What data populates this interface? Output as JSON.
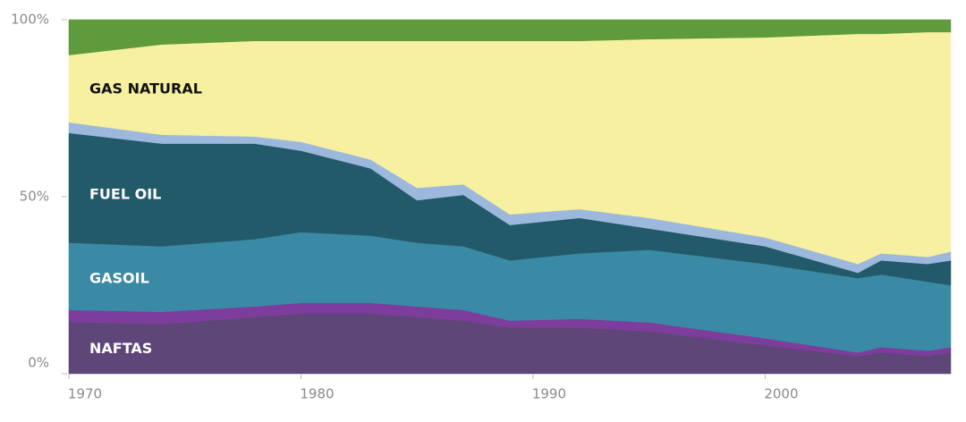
{
  "chart_data": {
    "type": "area",
    "stacked": true,
    "x": [
      1970,
      1974,
      1978,
      1980,
      1983,
      1985,
      1987,
      1989,
      1992,
      1995,
      2000,
      2004,
      2005,
      2007,
      2008
    ],
    "xlim": [
      1970,
      2008
    ],
    "xticks": [
      1970,
      1980,
      1990,
      2000
    ],
    "ylim": [
      0,
      100
    ],
    "yticks": [
      {
        "value": 0,
        "label": "0%"
      },
      {
        "value": 50,
        "label": "50%"
      },
      {
        "value": 100,
        "label": "100%"
      }
    ],
    "series": [
      {
        "name": "NAFTAS",
        "color": "#5e4678",
        "values": [
          14.6,
          14,
          16,
          17,
          17,
          16,
          15,
          13,
          13,
          12,
          8,
          5,
          6,
          5,
          6
        ]
      },
      {
        "color": "#7d3d9c",
        "values": [
          3.4,
          3.5,
          3,
          3,
          3,
          3,
          3,
          2,
          2.5,
          2.5,
          2,
          1,
          1.5,
          1.5,
          1.5
        ]
      },
      {
        "name": "GASOIL",
        "color": "#3a8aa5",
        "values": [
          19,
          18.5,
          19,
          20,
          19,
          18,
          18,
          17,
          18.5,
          20.5,
          21,
          21,
          20.5,
          19.5,
          17.5
        ]
      },
      {
        "name": "FUEL OIL",
        "color": "#235a6a",
        "values": [
          31,
          29,
          27,
          23,
          19,
          12,
          14.5,
          10,
          10,
          6,
          5,
          1.5,
          4,
          5,
          7
        ]
      },
      {
        "color": "#9db8dd",
        "values": [
          3,
          2.5,
          2,
          2.5,
          2.5,
          3.5,
          3,
          3,
          2.5,
          3,
          2.5,
          2.5,
          2,
          2,
          2.5
        ]
      },
      {
        "name": "GAS NATURAL",
        "color": "#f7f0a0",
        "values": [
          19,
          25.5,
          27,
          28.5,
          33.5,
          41.5,
          40.5,
          49,
          47.5,
          50.5,
          56.5,
          65,
          62,
          63.5,
          62
        ]
      },
      {
        "color": "#5f9a3c",
        "values": [
          10,
          7,
          6,
          6,
          6,
          6,
          6,
          6,
          6,
          5.5,
          5,
          4,
          4,
          3.5,
          3.5
        ]
      }
    ]
  }
}
